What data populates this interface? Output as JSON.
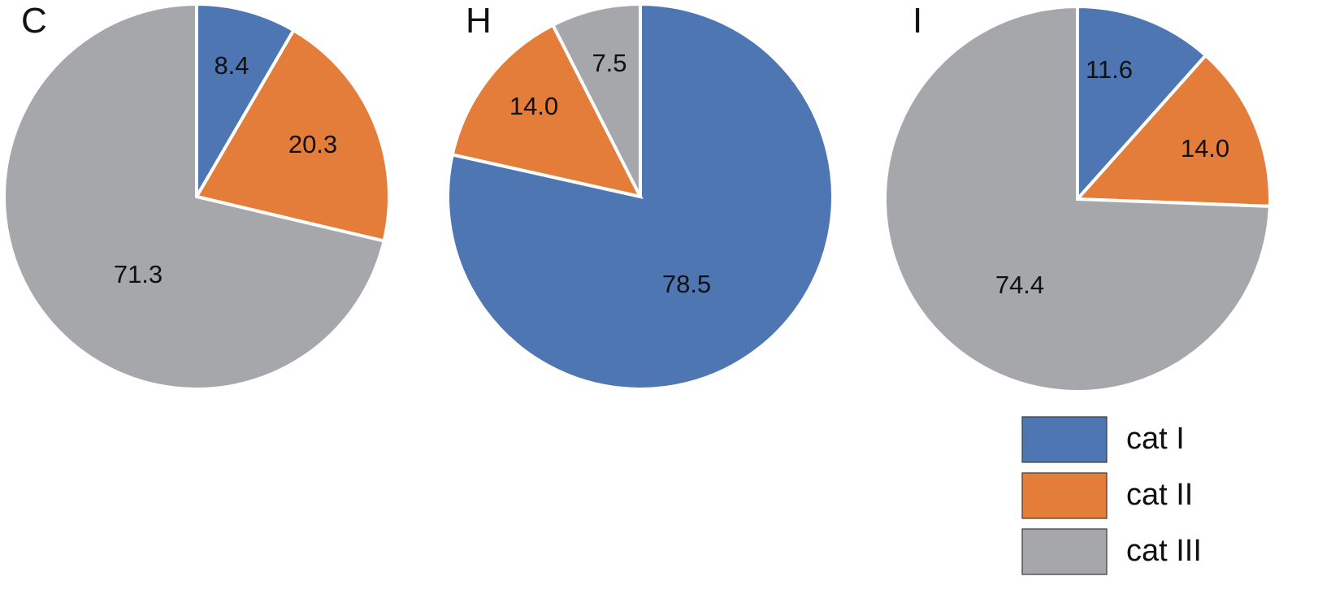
{
  "chart_data": [
    {
      "type": "pie",
      "panel": "C",
      "categories": [
        "cat I",
        "cat II",
        "cat III"
      ],
      "values": [
        8.4,
        20.3,
        71.3
      ]
    },
    {
      "type": "pie",
      "panel": "H",
      "categories": [
        "cat I",
        "cat II",
        "cat III"
      ],
      "values": [
        78.5,
        14.0,
        7.5
      ]
    },
    {
      "type": "pie",
      "panel": "I",
      "categories": [
        "cat I",
        "cat II",
        "cat III"
      ],
      "values": [
        11.6,
        14.0,
        74.4
      ]
    }
  ],
  "legend": {
    "placement": "bottom-right",
    "items": [
      {
        "label": "cat I",
        "color": "#4e76b2"
      },
      {
        "label": "cat II",
        "color": "#e47c3a"
      },
      {
        "label": "cat III",
        "color": "#a5a7ab"
      }
    ]
  },
  "colors": {
    "cat_I": "#4e76b2",
    "cat_II": "#e47c3a",
    "cat_III": "#a5a7ab"
  }
}
